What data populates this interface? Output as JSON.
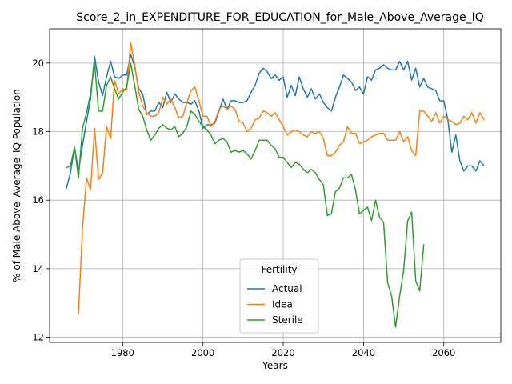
{
  "chart_data": {
    "type": "line",
    "title": "Score_2_in_EXPENDITURE_FOR_EDUCATION_for_Male_Above_Average_IQ",
    "xlabel": "Years",
    "ylabel": "% of Male Above_Average_IQ Population",
    "xlim": [
      1961.8,
      2074.2
    ],
    "ylim": [
      11.85,
      21.0
    ],
    "grid": true,
    "x_ticks": [
      1980,
      2000,
      2020,
      2040,
      2060
    ],
    "x_tick_labels": [
      "1980",
      "2000",
      "2020",
      "2040",
      "2060"
    ],
    "y_ticks": [
      12,
      14,
      16,
      18,
      20
    ],
    "y_tick_labels": [
      "12",
      "14",
      "16",
      "18",
      "20"
    ],
    "legend": {
      "title": "Fertility",
      "placement": "lower-center"
    },
    "series": [
      {
        "name": "Actual",
        "color": "#1f77b4",
        "x": [
          1966,
          1967,
          1968,
          1969,
          1970,
          1971,
          1972,
          1973,
          1974,
          1975,
          1976,
          1977,
          1978,
          1979,
          1980,
          1981,
          1982,
          1983,
          1984,
          1985,
          1986,
          1987,
          1988,
          1989,
          1990,
          1991,
          1992,
          1993,
          1994,
          1995,
          1996,
          1997,
          1998,
          1999,
          2000,
          2001,
          2002,
          2003,
          2004,
          2005,
          2006,
          2007,
          2008,
          2009,
          2010,
          2011,
          2012,
          2013,
          2014,
          2015,
          2016,
          2017,
          2018,
          2019,
          2020,
          2021,
          2022,
          2023,
          2024,
          2025,
          2026,
          2027,
          2028,
          2029,
          2030,
          2031,
          2032,
          2033,
          2034,
          2035,
          2036,
          2037,
          2038,
          2039,
          2040,
          2041,
          2042,
          2043,
          2044,
          2045,
          2046,
          2047,
          2048,
          2049,
          2050,
          2051,
          2052,
          2053,
          2054,
          2055,
          2056,
          2057,
          2058,
          2059,
          2060,
          2061,
          2062,
          2063,
          2064,
          2065,
          2066,
          2067,
          2068,
          2069,
          2070
        ],
        "values": [
          16.35,
          16.8,
          17.55,
          16.85,
          17.6,
          18.3,
          18.95,
          20.2,
          19.45,
          19.05,
          19.6,
          20.05,
          19.6,
          19.55,
          19.65,
          19.65,
          20.25,
          19.9,
          19.25,
          19.1,
          18.5,
          18.6,
          18.6,
          18.85,
          18.7,
          19.15,
          18.85,
          19.1,
          18.95,
          18.85,
          18.85,
          18.8,
          18.9,
          18.6,
          18.1,
          18.2,
          18.2,
          18.25,
          18.6,
          18.95,
          18.65,
          18.9,
          18.9,
          18.85,
          18.85,
          18.9,
          19.15,
          19.35,
          19.7,
          19.85,
          19.75,
          19.55,
          19.65,
          19.5,
          19.6,
          19.0,
          19.35,
          19.05,
          19.6,
          19.25,
          19.0,
          19.25,
          18.95,
          19.1,
          18.85,
          18.7,
          18.6,
          19.0,
          19.3,
          19.65,
          19.55,
          19.45,
          19.2,
          19.3,
          19.1,
          19.6,
          19.5,
          19.8,
          19.85,
          19.95,
          19.85,
          19.8,
          19.8,
          20.05,
          19.8,
          20.05,
          19.5,
          19.85,
          19.3,
          19.55,
          19.3,
          19.25,
          19.2,
          18.9,
          18.9,
          18.35,
          17.4,
          17.9,
          17.15,
          16.85,
          17.0,
          17.0,
          16.85,
          17.15,
          17.0
        ]
      },
      {
        "name": "Ideal",
        "color": "#ff7f0e",
        "x": [
          1969,
          1970,
          1971,
          1972,
          1973,
          1974,
          1975,
          1976,
          1977,
          1978,
          1979,
          1980,
          1981,
          1982,
          1983,
          1984,
          1985,
          1986,
          1987,
          1988,
          1989,
          1990,
          1991,
          1992,
          1993,
          1994,
          1995,
          1996,
          1997,
          1998,
          1999,
          2000,
          2001,
          2002,
          2003,
          2004,
          2005,
          2006,
          2007,
          2008,
          2009,
          2010,
          2011,
          2012,
          2013,
          2014,
          2015,
          2016,
          2017,
          2018,
          2019,
          2020,
          2021,
          2022,
          2023,
          2024,
          2025,
          2026,
          2027,
          2028,
          2029,
          2030,
          2031,
          2032,
          2033,
          2034,
          2035,
          2036,
          2037,
          2038,
          2039,
          2040,
          2041,
          2042,
          2043,
          2044,
          2045,
          2046,
          2047,
          2048,
          2049,
          2050,
          2051,
          2052,
          2053,
          2054,
          2055,
          2056,
          2057,
          2058,
          2059,
          2060,
          2061,
          2062,
          2063,
          2064,
          2065,
          2066,
          2067,
          2068,
          2069,
          2070
        ],
        "values": [
          12.7,
          15.2,
          16.65,
          16.3,
          18.1,
          16.6,
          16.8,
          18.15,
          17.8,
          19.5,
          19.1,
          19.25,
          19.2,
          20.6,
          19.95,
          19.15,
          18.75,
          18.55,
          18.45,
          18.45,
          18.55,
          19.0,
          18.8,
          18.95,
          18.7,
          18.4,
          18.45,
          18.85,
          19.2,
          19.3,
          18.9,
          18.45,
          18.45,
          18.15,
          18.3,
          18.65,
          18.75,
          18.65,
          18.75,
          18.65,
          18.3,
          18.25,
          18.0,
          18.1,
          18.35,
          18.4,
          18.6,
          18.55,
          18.45,
          18.55,
          18.35,
          18.15,
          17.9,
          18.0,
          18.05,
          18.0,
          17.9,
          17.85,
          18.0,
          17.95,
          18.0,
          17.8,
          17.3,
          17.3,
          17.4,
          17.6,
          17.7,
          18.15,
          17.95,
          17.95,
          17.65,
          17.7,
          17.75,
          17.85,
          17.9,
          17.95,
          17.95,
          17.75,
          17.75,
          17.75,
          18.0,
          17.7,
          17.85,
          17.45,
          17.3,
          18.6,
          18.6,
          18.45,
          18.3,
          18.55,
          18.25,
          18.45,
          18.35,
          18.3,
          18.2,
          18.25,
          18.45,
          18.35,
          18.55,
          18.25,
          18.55,
          18.35
        ]
      },
      {
        "name": "Sterile",
        "color": "#2ca02c",
        "x": [
          1966,
          1967,
          1968,
          1969,
          1970,
          1971,
          1972,
          1973,
          1974,
          1975,
          1976,
          1977,
          1978,
          1979,
          1980,
          1981,
          1982,
          1983,
          1984,
          1985,
          1986,
          1987,
          1988,
          1989,
          1990,
          1991,
          1992,
          1993,
          1994,
          1995,
          1996,
          1997,
          1998,
          1999,
          2000,
          2001,
          2002,
          2003,
          2004,
          2005,
          2006,
          2007,
          2008,
          2009,
          2010,
          2011,
          2012,
          2013,
          2014,
          2015,
          2016,
          2017,
          2018,
          2019,
          2020,
          2021,
          2022,
          2023,
          2024,
          2025,
          2026,
          2027,
          2028,
          2029,
          2030,
          2031,
          2032,
          2033,
          2034,
          2035,
          2036,
          2037,
          2038,
          2039,
          2040,
          2041,
          2042,
          2043,
          2044,
          2045,
          2046,
          2047,
          2048,
          2049,
          2050,
          2051,
          2052,
          2053,
          2054,
          2055
        ],
        "values": [
          16.95,
          17.0,
          17.55,
          16.65,
          18.1,
          18.55,
          19.1,
          20.0,
          18.6,
          18.6,
          19.35,
          19.6,
          19.25,
          18.95,
          19.15,
          19.3,
          20.0,
          19.35,
          18.65,
          18.45,
          18.05,
          17.75,
          17.9,
          18.1,
          18.2,
          18.1,
          18.05,
          18.15,
          17.85,
          17.95,
          18.15,
          18.6,
          18.5,
          18.3,
          18.15,
          18.05,
          17.9,
          17.65,
          17.75,
          17.8,
          17.7,
          17.4,
          17.45,
          17.4,
          17.45,
          17.35,
          17.2,
          17.45,
          17.75,
          17.75,
          17.75,
          17.6,
          17.5,
          17.25,
          17.25,
          17.1,
          16.95,
          17.1,
          17.05,
          16.9,
          16.8,
          16.9,
          16.8,
          16.6,
          16.45,
          15.55,
          15.6,
          16.25,
          16.35,
          16.65,
          16.65,
          16.75,
          16.3,
          15.6,
          15.7,
          15.8,
          15.4,
          16.0,
          15.5,
          15.35,
          13.6,
          13.2,
          12.3,
          13.2,
          13.95,
          15.4,
          15.65,
          13.65,
          13.35,
          14.7
        ]
      }
    ]
  }
}
